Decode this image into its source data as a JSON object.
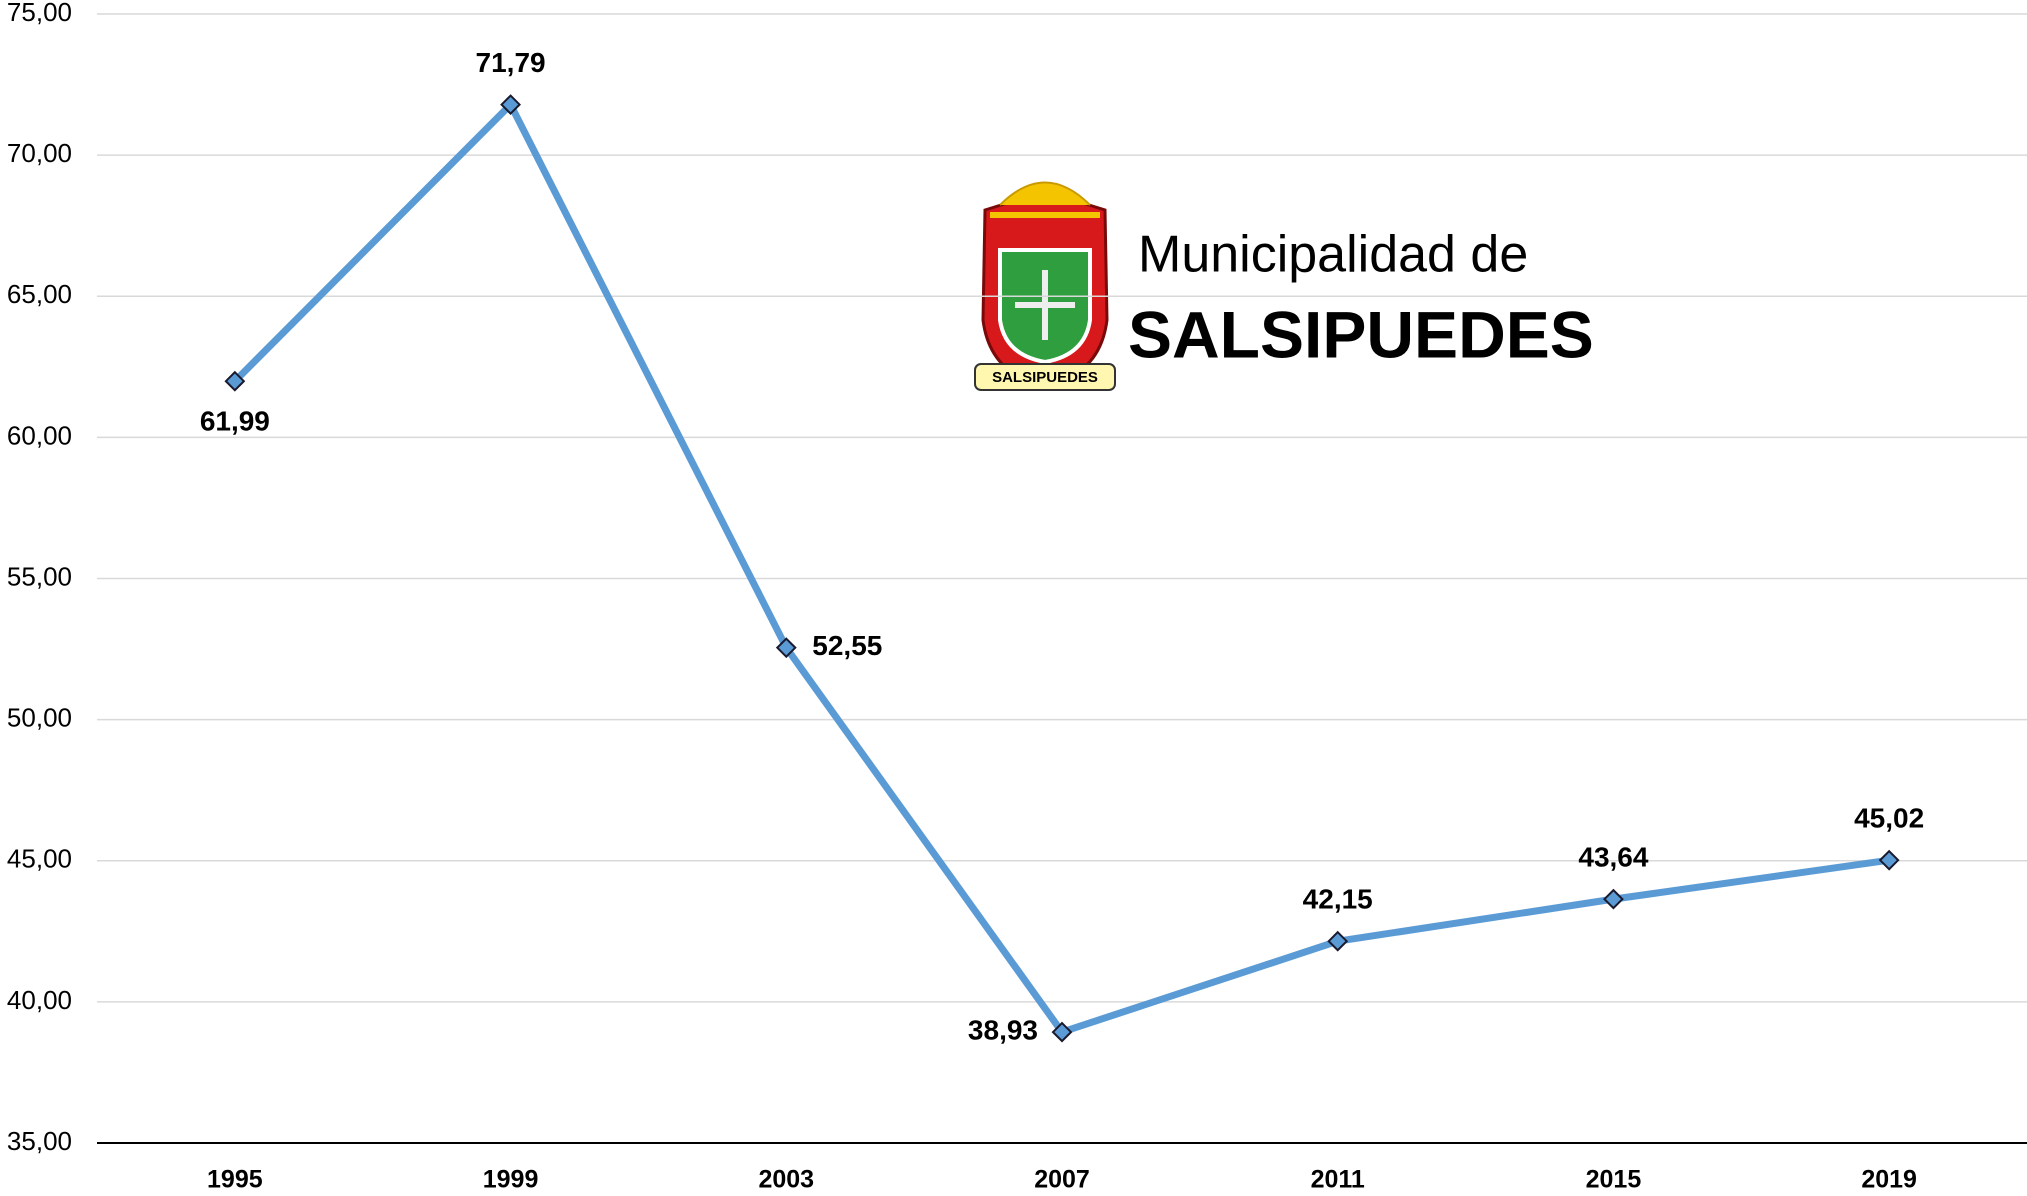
{
  "chart_data": {
    "type": "line",
    "categories": [
      "1995",
      "1999",
      "2003",
      "2007",
      "2011",
      "2015",
      "2019"
    ],
    "series": [
      {
        "name": null,
        "color": "#5b9bd5",
        "values": [
          61.99,
          71.79,
          52.55,
          38.93,
          42.15,
          43.64,
          45.02
        ],
        "value_labels": [
          "61,99",
          "71,79",
          "52,55",
          "38,93",
          "42,15",
          "43,64",
          "45,02"
        ]
      }
    ],
    "ylim": [
      35,
      75
    ],
    "yticks": [
      {
        "value": 35,
        "label": "35,00"
      },
      {
        "value": 40,
        "label": "40,00"
      },
      {
        "value": 45,
        "label": "45,00"
      },
      {
        "value": 50,
        "label": "50,00"
      },
      {
        "value": 55,
        "label": "55,00"
      },
      {
        "value": 60,
        "label": "60,00"
      },
      {
        "value": 65,
        "label": "65,00"
      },
      {
        "value": 70,
        "label": "70,00"
      },
      {
        "value": 75,
        "label": "75,00"
      }
    ],
    "grid": true,
    "logo": {
      "line1": "Municipalidad de",
      "line2": "SALSIPUEDES",
      "banner": "SALSIPUEDES"
    }
  }
}
